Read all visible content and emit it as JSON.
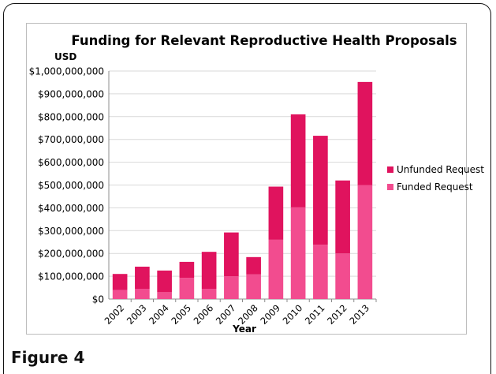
{
  "figure_caption": "Figure 4",
  "colors": {
    "unfunded": "#e0135e",
    "funded": "#f24c8f",
    "grid": "#d9d9d9",
    "axis": "#8c8c8c"
  },
  "chart_data": {
    "type": "bar",
    "stacked": true,
    "title": "Funding for Relevant Reproductive Health Proposals",
    "xlabel": "Year",
    "ylabel": "USD",
    "ylim": [
      0,
      1000000000
    ],
    "yticks": [
      "$0",
      "$100,000,000",
      "$200,000,000",
      "$300,000,000",
      "$400,000,000",
      "$500,000,000",
      "$600,000,000",
      "$700,000,000",
      "$800,000,000",
      "$900,000,000",
      "$1,000,000,000"
    ],
    "categories": [
      "2002",
      "2003",
      "2004",
      "2005",
      "2006",
      "2007",
      "2008",
      "2009",
      "2010",
      "2011",
      "2012",
      "2013"
    ],
    "series": [
      {
        "name": "Funded Request",
        "values": [
          40000000,
          45000000,
          30000000,
          93000000,
          45000000,
          100000000,
          108000000,
          260000000,
          402000000,
          238000000,
          200000000,
          500000000
        ]
      },
      {
        "name": "Unfunded Request",
        "values": [
          70000000,
          97000000,
          95000000,
          70000000,
          162000000,
          192000000,
          76000000,
          233000000,
          408000000,
          478000000,
          320000000,
          452000000
        ]
      }
    ],
    "legend_position": "right",
    "grid": true
  }
}
